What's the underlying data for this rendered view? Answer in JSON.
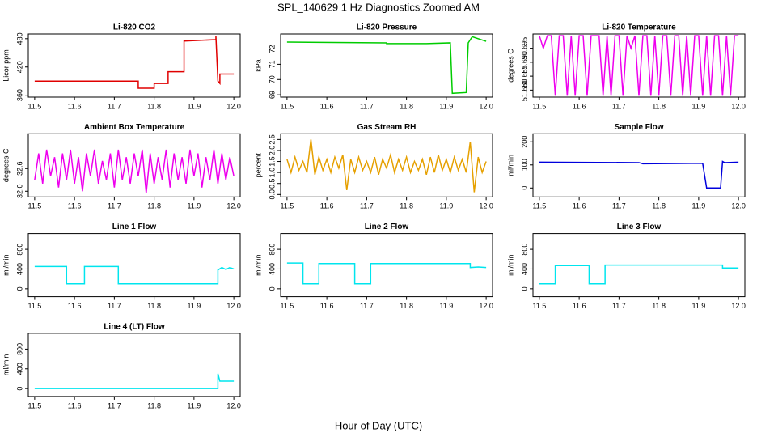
{
  "title": "SPL_140629  1 Hz Diagnostics Zoomed AM",
  "xlabel": "Hour of Day (UTC)",
  "chart_data": [
    {
      "type": "line",
      "title": "Li-820 CO2",
      "ylabel": "Licor ppm",
      "color": "#e00000",
      "x": [
        11.5,
        11.76,
        11.76,
        11.8,
        11.8,
        11.835,
        11.835,
        11.875,
        11.875,
        11.955,
        11.955,
        11.96,
        11.965,
        11.965,
        12.0
      ],
      "values": [
        390,
        390,
        375,
        375,
        385,
        385,
        410,
        410,
        475,
        478,
        485,
        390,
        385,
        405,
        405
      ],
      "xlim": [
        11.484,
        12.016
      ],
      "xticks": [
        11.5,
        11.6,
        11.7,
        11.8,
        11.9,
        {
          "value": 12,
          "label": "12.0"
        }
      ],
      "ylim": [
        356,
        490
      ],
      "yticks": [
        360,
        420,
        480
      ]
    },
    {
      "type": "line",
      "title": "Li-820 Pressure",
      "ylabel": "kPa",
      "color": "#00cc00",
      "x": [
        11.5,
        11.75,
        11.75,
        11.85,
        11.91,
        11.915,
        11.95,
        11.955,
        11.965,
        12.0
      ],
      "values": [
        72.45,
        72.4,
        72.35,
        72.35,
        72.4,
        69.1,
        69.15,
        72.4,
        72.8,
        72.5
      ],
      "xlim": [
        11.484,
        12.016
      ],
      "xticks": [
        11.5,
        11.6,
        11.7,
        11.8,
        11.9,
        {
          "value": 12,
          "label": "12.0"
        }
      ],
      "ylim": [
        68.85,
        72.98
      ],
      "yticks": [
        69,
        70,
        71,
        72
      ]
    },
    {
      "type": "line",
      "title": "Li-820 Temperature",
      "ylabel": "degrees C",
      "color": "#ee00ee",
      "x": [
        11.5,
        11.51,
        11.52,
        11.53,
        11.54,
        11.55,
        11.56,
        11.57,
        11.58,
        11.59,
        11.6,
        11.61,
        11.62,
        11.63,
        11.64,
        11.65,
        11.66,
        11.67,
        11.68,
        11.69,
        11.7,
        11.71,
        11.72,
        11.73,
        11.74,
        11.75,
        11.76,
        11.77,
        11.78,
        11.79,
        11.8,
        11.81,
        11.82,
        11.83,
        11.84,
        11.85,
        11.86,
        11.87,
        11.88,
        11.89,
        11.9,
        11.91,
        11.92,
        11.93,
        11.94,
        11.95,
        11.96,
        11.97,
        11.98,
        11.99,
        12.0
      ],
      "values": [
        51.6995,
        51.695,
        51.6995,
        51.6995,
        51.678,
        51.6995,
        51.6995,
        51.678,
        51.6995,
        51.678,
        51.6995,
        51.6995,
        51.678,
        51.6995,
        51.6995,
        51.6995,
        51.678,
        51.6995,
        51.678,
        51.6995,
        51.6995,
        51.678,
        51.6995,
        51.695,
        51.6995,
        51.678,
        51.6995,
        51.6995,
        51.678,
        51.6995,
        51.678,
        51.6995,
        51.6995,
        51.678,
        51.6995,
        51.6995,
        51.678,
        51.6995,
        51.678,
        51.6995,
        51.6995,
        51.678,
        51.6995,
        51.678,
        51.6995,
        51.6995,
        51.678,
        51.6995,
        51.678,
        51.6995,
        51.6995
      ],
      "xlim": [
        11.484,
        12.016
      ],
      "xticks": [
        11.5,
        11.6,
        11.7,
        11.8,
        11.9,
        {
          "value": 12,
          "label": "12.0"
        }
      ],
      "ylim": [
        51.6775,
        51.7001
      ],
      "yticks": [
        {
          "value": 51.68,
          "label": "51.680"
        },
        {
          "value": 51.685,
          "label": "51.685"
        },
        {
          "value": 51.69,
          "label": "51.690"
        },
        51.695
      ]
    },
    {
      "type": "line",
      "title": "Ambient Box Temperature",
      "ylabel": "degrees C",
      "color": "#ee00ee",
      "x": [
        11.5,
        11.51,
        11.52,
        11.53,
        11.54,
        11.55,
        11.56,
        11.57,
        11.58,
        11.59,
        11.6,
        11.61,
        11.62,
        11.63,
        11.64,
        11.65,
        11.66,
        11.67,
        11.68,
        11.69,
        11.7,
        11.71,
        11.72,
        11.73,
        11.74,
        11.75,
        11.76,
        11.77,
        11.78,
        11.79,
        11.8,
        11.81,
        11.82,
        11.83,
        11.84,
        11.85,
        11.86,
        11.87,
        11.88,
        11.89,
        11.9,
        11.91,
        11.92,
        11.93,
        11.94,
        11.95,
        11.96,
        11.97,
        11.98,
        11.99,
        12.0
      ],
      "values": [
        32.3,
        33.0,
        32.2,
        33.1,
        32.4,
        32.9,
        32.1,
        33.0,
        32.3,
        33.1,
        32.2,
        32.9,
        32.0,
        33.0,
        32.4,
        33.1,
        32.2,
        32.8,
        32.3,
        33.0,
        32.1,
        33.1,
        32.3,
        32.9,
        32.2,
        33.0,
        32.4,
        33.1,
        31.95,
        33.0,
        32.2,
        32.9,
        32.3,
        33.1,
        32.1,
        33.0,
        32.3,
        32.9,
        32.2,
        33.1,
        32.4,
        33.0,
        32.1,
        32.9,
        32.3,
        33.1,
        32.2,
        33.0,
        32.3,
        32.9,
        32.4
      ],
      "xlim": [
        11.484,
        12.016
      ],
      "xticks": [
        11.5,
        11.6,
        11.7,
        11.8,
        11.9,
        {
          "value": 12,
          "label": "12.0"
        }
      ],
      "ylim": [
        31.85,
        33.52
      ],
      "yticks": [
        {
          "value": 32,
          "label": "32.0"
        },
        32.6
      ]
    },
    {
      "type": "line",
      "title": "Gas Stream RH",
      "ylabel": "percent",
      "color": "#e6a000",
      "x": [
        11.5,
        11.51,
        11.52,
        11.53,
        11.54,
        11.55,
        11.56,
        11.57,
        11.58,
        11.59,
        11.6,
        11.61,
        11.62,
        11.63,
        11.64,
        11.65,
        11.66,
        11.67,
        11.68,
        11.69,
        11.7,
        11.71,
        11.72,
        11.73,
        11.74,
        11.75,
        11.76,
        11.77,
        11.78,
        11.79,
        11.8,
        11.81,
        11.82,
        11.83,
        11.84,
        11.85,
        11.86,
        11.87,
        11.88,
        11.89,
        11.9,
        11.91,
        11.92,
        11.93,
        11.94,
        11.95,
        11.96,
        11.97,
        11.98,
        11.99,
        12.0
      ],
      "values": [
        1.6,
        1.0,
        1.7,
        1.1,
        1.5,
        1.0,
        2.5,
        0.9,
        1.7,
        1.1,
        1.6,
        1.0,
        1.7,
        1.2,
        1.8,
        0.2,
        1.6,
        1.0,
        1.7,
        1.1,
        1.5,
        1.0,
        1.7,
        0.9,
        1.6,
        1.2,
        1.8,
        1.0,
        1.6,
        1.1,
        1.7,
        1.0,
        1.5,
        1.1,
        1.6,
        0.9,
        1.7,
        1.0,
        1.8,
        1.1,
        1.6,
        1.0,
        1.7,
        1.1,
        1.6,
        1.0,
        2.4,
        0.1,
        1.7,
        1.0,
        1.5
      ],
      "xlim": [
        11.484,
        12.016
      ],
      "xticks": [
        11.5,
        11.6,
        11.7,
        11.8,
        11.9,
        {
          "value": 12,
          "label": "12.0"
        }
      ],
      "ylim": [
        -0.11,
        2.76
      ],
      "yticks": [
        {
          "value": 0,
          "label": "0.0"
        },
        0.5,
        {
          "value": 1,
          "label": "1.0"
        },
        1.5,
        {
          "value": 2,
          "label": "2.0"
        },
        2.5
      ]
    },
    {
      "type": "line",
      "title": "Sample Flow",
      "ylabel": "ml/min",
      "color": "#0000dd",
      "x": [
        11.5,
        11.75,
        11.76,
        11.91,
        11.92,
        11.955,
        11.96,
        11.965,
        12.0
      ],
      "values": [
        112,
        110,
        105,
        107,
        0,
        0,
        115,
        110,
        112
      ],
      "xlim": [
        11.484,
        12.016
      ],
      "xticks": [
        11.5,
        11.6,
        11.7,
        11.8,
        11.9,
        {
          "value": 12,
          "label": "12.0"
        }
      ],
      "ylim": [
        -38.6,
        235
      ],
      "yticks": [
        0,
        100,
        200
      ]
    },
    {
      "type": "line",
      "title": "Line 1 Flow",
      "ylabel": "ml/min",
      "color": "#00e5ee",
      "x": [
        11.5,
        11.58,
        11.58,
        11.625,
        11.625,
        11.71,
        11.71,
        11.96,
        11.96,
        11.97,
        11.98,
        11.99,
        12.0
      ],
      "values": [
        450,
        450,
        100,
        100,
        450,
        450,
        100,
        100,
        380,
        430,
        390,
        430,
        400
      ],
      "xlim": [
        11.484,
        12.016
      ],
      "xticks": [
        11.5,
        11.6,
        11.7,
        11.8,
        11.9,
        {
          "value": 12,
          "label": "12.0"
        }
      ],
      "ylim": [
        -160,
        1120
      ],
      "yticks": [
        0,
        400,
        800
      ]
    },
    {
      "type": "line",
      "title": "Line 2 Flow",
      "ylabel": "ml/min",
      "color": "#00e5ee",
      "x": [
        11.5,
        11.54,
        11.54,
        11.58,
        11.58,
        11.67,
        11.67,
        11.71,
        11.71,
        11.96,
        11.96,
        11.98,
        12.0
      ],
      "values": [
        520,
        520,
        100,
        100,
        510,
        510,
        100,
        100,
        510,
        510,
        430,
        440,
        430
      ],
      "xlim": [
        11.484,
        12.016
      ],
      "xticks": [
        11.5,
        11.6,
        11.7,
        11.8,
        11.9,
        {
          "value": 12,
          "label": "12.0"
        }
      ],
      "ylim": [
        -160,
        1120
      ],
      "yticks": [
        0,
        400,
        800
      ]
    },
    {
      "type": "line",
      "title": "Line 3 Flow",
      "ylabel": "ml/min",
      "color": "#00e5ee",
      "x": [
        11.5,
        11.54,
        11.54,
        11.625,
        11.625,
        11.665,
        11.665,
        11.96,
        11.96,
        12.0
      ],
      "values": [
        100,
        100,
        470,
        470,
        100,
        100,
        480,
        480,
        420,
        420
      ],
      "xlim": [
        11.484,
        12.016
      ],
      "xticks": [
        11.5,
        11.6,
        11.7,
        11.8,
        11.9,
        {
          "value": 12,
          "label": "12.0"
        }
      ],
      "ylim": [
        -160,
        1120
      ],
      "yticks": [
        0,
        400,
        800
      ]
    },
    {
      "type": "line",
      "title": "Line 4 (LT) Flow",
      "ylabel": "ml/min",
      "color": "#00e5ee",
      "x": [
        11.5,
        11.96,
        11.96,
        11.965,
        12.0
      ],
      "values": [
        0,
        0,
        300,
        150,
        150
      ],
      "xlim": [
        11.484,
        12.016
      ],
      "xticks": [
        11.5,
        11.6,
        11.7,
        11.8,
        11.9,
        {
          "value": 12,
          "label": "12.0"
        }
      ],
      "ylim": [
        -160,
        1120
      ],
      "yticks": [
        0,
        400,
        800
      ]
    }
  ]
}
